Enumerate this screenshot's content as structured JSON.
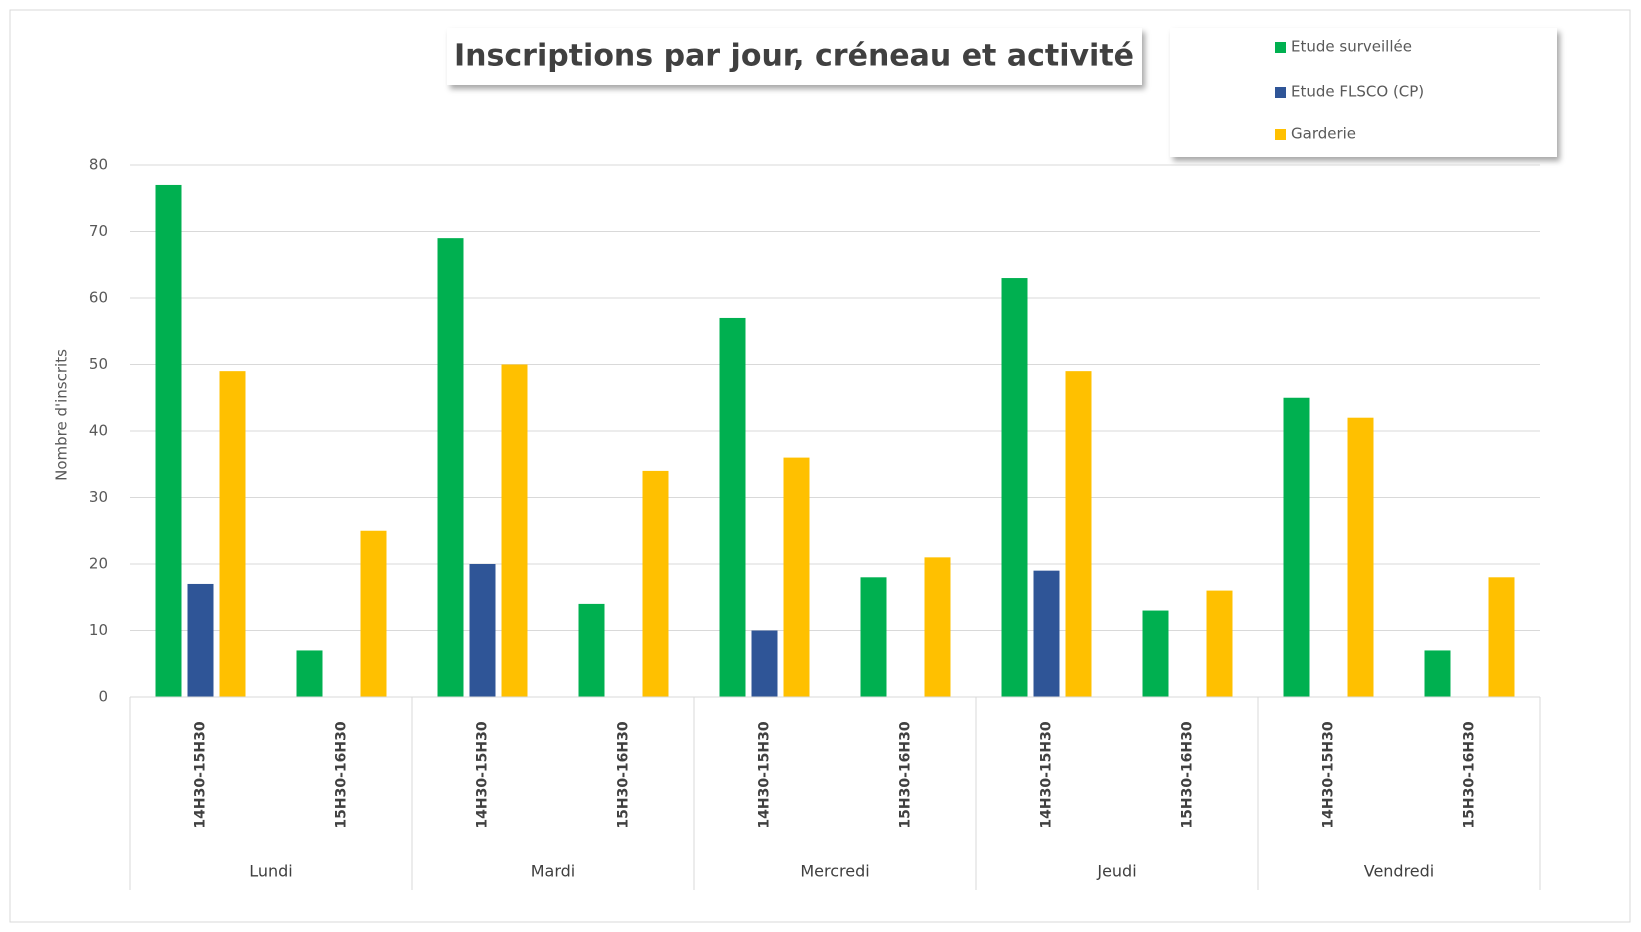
{
  "chart_data": {
    "type": "bar",
    "title": "Inscriptions  par jour, créneau et activité",
    "y_label": "Nombre d'inscrits",
    "categories": [
      "14H30-15H30",
      "15H30-16H30",
      "14H30-15H30",
      "15H30-16H30",
      "14H30-15H30",
      "15H30-16H30",
      "14H30-15H30",
      "15H30-16H30",
      "14H30-15H30",
      "15H30-16H30"
    ],
    "groups": [
      "Lundi",
      "Mardi",
      "Mercredi",
      "Jeudi",
      "Vendredi"
    ],
    "series": [
      {
        "name": "Etude surveillée",
        "color": "#00b050",
        "values": [
          77,
          7,
          69,
          14,
          57,
          18,
          63,
          13,
          45,
          7
        ]
      },
      {
        "name": "Etude FLSCO (CP)",
        "color": "#2f5597",
        "values": [
          17,
          null,
          20,
          null,
          10,
          null,
          19,
          null,
          null,
          null
        ]
      },
      {
        "name": "Garderie",
        "color": "#ffc000",
        "values": [
          49,
          25,
          50,
          34,
          36,
          21,
          49,
          16,
          42,
          18
        ]
      }
    ],
    "ylim": [
      0,
      80
    ],
    "yticks": [
      0,
      10,
      20,
      30,
      40,
      50,
      60,
      70,
      80
    ],
    "grid": true,
    "legend": "top-right"
  }
}
